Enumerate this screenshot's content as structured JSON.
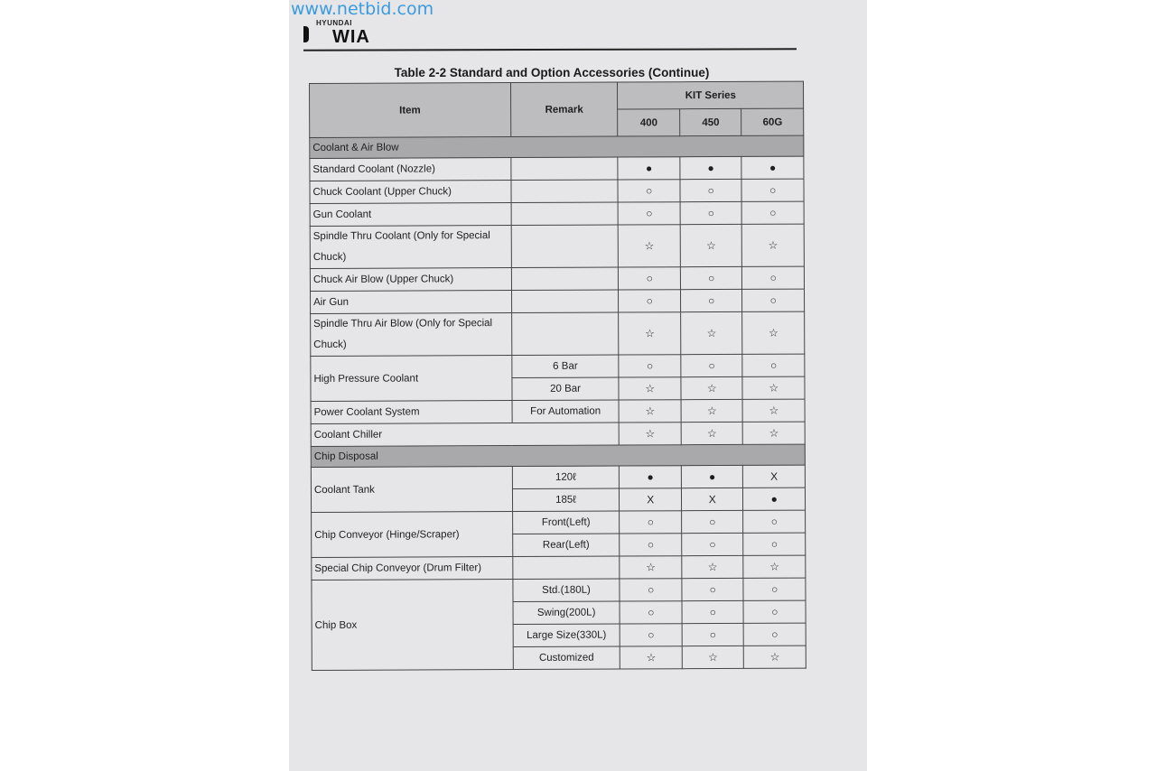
{
  "watermark": "www.netbid.com",
  "logo": {
    "small": "HYUNDAI",
    "big": "WIA"
  },
  "title": "Table 2-2 Standard and Option Accessories (Continue)",
  "header": {
    "item": "Item",
    "remark": "Remark",
    "series": "KIT Series",
    "models": [
      "400",
      "450",
      "60G"
    ]
  },
  "sections": [
    {
      "name": "Coolant & Air Blow",
      "rows": [
        {
          "item": "Standard Coolant (Nozzle)",
          "remark": "",
          "values": [
            "●",
            "●",
            "●"
          ]
        },
        {
          "item": "Chuck Coolant (Upper Chuck)",
          "remark": "",
          "values": [
            "○",
            "○",
            "○"
          ]
        },
        {
          "item": "Gun Coolant",
          "remark": "",
          "values": [
            "○",
            "○",
            "○"
          ]
        },
        {
          "item": "Spindle Thru Coolant (Only for Special Chuck)",
          "remark": "",
          "values": [
            "☆",
            "☆",
            "☆"
          ],
          "two": true
        },
        {
          "item": "Chuck Air Blow (Upper Chuck)",
          "remark": "",
          "values": [
            "○",
            "○",
            "○"
          ]
        },
        {
          "item": "Air Gun",
          "remark": "",
          "values": [
            "○",
            "○",
            "○"
          ]
        },
        {
          "item": "Spindle Thru Air Blow (Only for Special Chuck)",
          "remark": "",
          "values": [
            "☆",
            "☆",
            "☆"
          ],
          "two": true
        },
        {
          "item": "High Pressure Coolant",
          "remark": "6 Bar",
          "values": [
            "○",
            "○",
            "○"
          ],
          "span": 2
        },
        {
          "remark": "20 Bar",
          "values": [
            "☆",
            "☆",
            "☆"
          ]
        },
        {
          "item": "Power Coolant System",
          "remark": "For Automation",
          "values": [
            "☆",
            "☆",
            "☆"
          ]
        },
        {
          "item": "Coolant Chiller",
          "merged": true,
          "values": [
            "☆",
            "☆",
            "☆"
          ]
        }
      ]
    },
    {
      "name": "Chip Disposal",
      "rows": [
        {
          "item": "Coolant Tank",
          "remark": "120ℓ",
          "values": [
            "●",
            "●",
            "X"
          ],
          "span": 2
        },
        {
          "remark": "185ℓ",
          "values": [
            "X",
            "X",
            "●"
          ]
        },
        {
          "item": "Chip Conveyor (Hinge/Scraper)",
          "remark": "Front(Left)",
          "values": [
            "○",
            "○",
            "○"
          ],
          "span": 2
        },
        {
          "remark": "Rear(Left)",
          "values": [
            "○",
            "○",
            "○"
          ]
        },
        {
          "item": "Special Chip Conveyor (Drum Filter)",
          "remark": "",
          "values": [
            "☆",
            "☆",
            "☆"
          ]
        },
        {
          "item": "Chip Box",
          "remark": "Std.(180L)",
          "values": [
            "○",
            "○",
            "○"
          ],
          "span": 4
        },
        {
          "remark": "Swing(200L)",
          "values": [
            "○",
            "○",
            "○"
          ]
        },
        {
          "remark": "Large Size(330L)",
          "values": [
            "○",
            "○",
            "○"
          ]
        },
        {
          "remark": "Customized",
          "values": [
            "☆",
            "☆",
            "☆"
          ]
        }
      ]
    }
  ]
}
